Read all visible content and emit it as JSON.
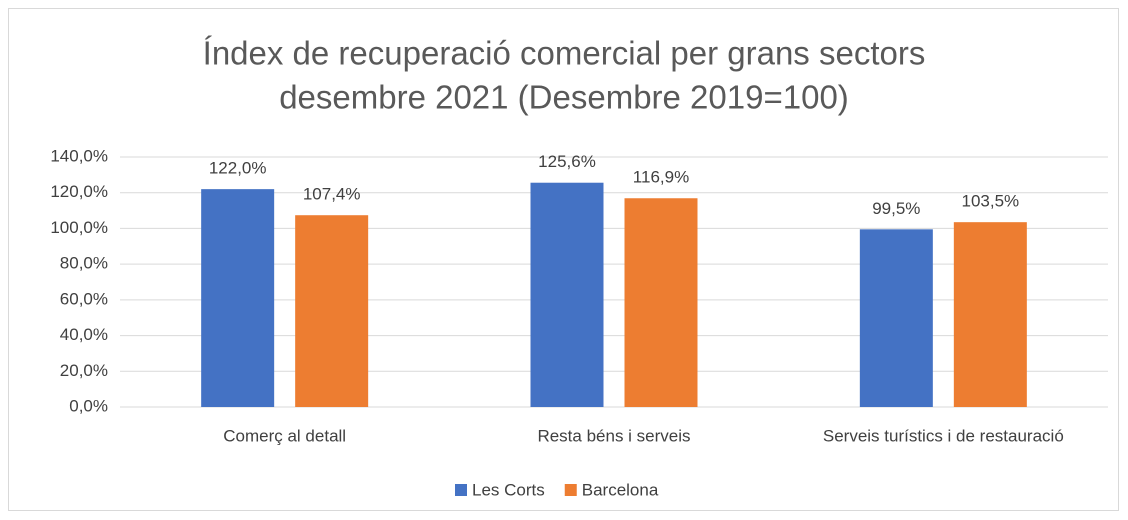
{
  "chart_data": {
    "type": "bar",
    "title": "Índex de recuperació comercial per grans sectors",
    "subtitle": "desembre 2021 (Desembre 2019=100)",
    "categories": [
      "Comerç al detall",
      "Resta béns i serveis",
      "Serveis turístics i de restauració"
    ],
    "series": [
      {
        "name": "Les Corts",
        "color": "#4472c4",
        "values": [
          122.0,
          125.6,
          99.5
        ],
        "value_labels": [
          "122,0%",
          "125,6%",
          "99,5%"
        ]
      },
      {
        "name": "Barcelona",
        "color": "#ed7d31",
        "values": [
          107.4,
          116.9,
          103.5
        ],
        "value_labels": [
          "107,4%",
          "116,9%",
          "103,5%"
        ]
      }
    ],
    "ylim": [
      0,
      140
    ],
    "yticks": [
      {
        "value": 0,
        "label": "0,0%"
      },
      {
        "value": 20,
        "label": "20,0%"
      },
      {
        "value": 40,
        "label": "40,0%"
      },
      {
        "value": 60,
        "label": "60,0%"
      },
      {
        "value": 80,
        "label": "80,0%"
      },
      {
        "value": 100,
        "label": "100,0%"
      },
      {
        "value": 120,
        "label": "120,0%"
      },
      {
        "value": 140,
        "label": "140,0%"
      }
    ],
    "grid": true,
    "legend": "bottom"
  }
}
